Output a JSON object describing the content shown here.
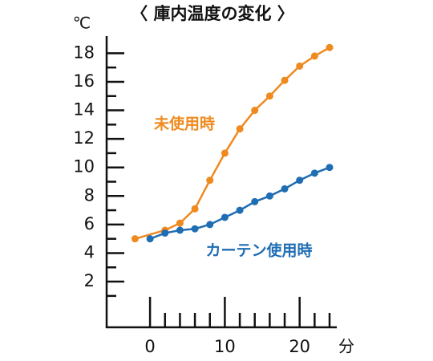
{
  "chart_data": {
    "type": "line",
    "title": "〈 庫内温度の変化 〉",
    "y_label": "℃",
    "x_label": "分",
    "xlim": [
      -5.8,
      25.5
    ],
    "ylim": [
      -1.2,
      19.2
    ],
    "xticks": [
      0,
      10,
      20
    ],
    "x_minor_ticks": [
      2,
      4,
      6,
      8,
      12,
      14,
      16,
      18,
      22,
      24
    ],
    "yticks": [
      2,
      4,
      6,
      8,
      10,
      12,
      14,
      16,
      18
    ],
    "y_minor_ticks": [
      1,
      3,
      5,
      7,
      9,
      11,
      13,
      15,
      17
    ],
    "series": [
      {
        "name": "未使用時",
        "color": "#ef8a1f",
        "x": [
          -2,
          2,
          4,
          6,
          8,
          10,
          12,
          14,
          16,
          18,
          20,
          22,
          24
        ],
        "values": [
          5.0,
          5.6,
          6.1,
          7.1,
          9.1,
          11.0,
          12.7,
          14.0,
          15.0,
          16.1,
          17.1,
          17.8,
          18.4
        ]
      },
      {
        "name": "カーテン使用時",
        "color": "#1f6db3",
        "x": [
          0,
          2,
          4,
          6,
          8,
          10,
          12,
          14,
          16,
          18,
          20,
          22,
          24
        ],
        "values": [
          5.0,
          5.4,
          5.6,
          5.7,
          6.0,
          6.5,
          7.0,
          7.6,
          8.0,
          8.5,
          9.1,
          9.6,
          10.0
        ]
      }
    ]
  }
}
